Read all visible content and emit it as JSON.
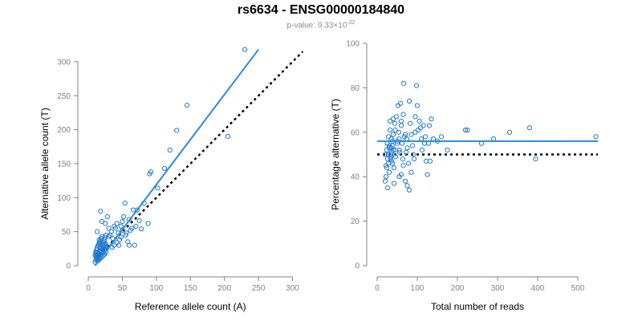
{
  "title": "rs6634 - ENSG00000184840",
  "subtitle": {
    "prefix": "p-value: 9.33×10",
    "exponent": "-32"
  },
  "colors": {
    "points": "#1f77d0",
    "fit_line": "#2a8ae0",
    "reference_line": "#000000",
    "axis": "#808080"
  },
  "chart_data": [
    {
      "type": "scatter",
      "xlabel": "Reference allele count (A)",
      "ylabel": "Alternative allele count (T)",
      "xlim": [
        0,
        310
      ],
      "ylim": [
        0,
        320
      ],
      "xticks": [
        0,
        50,
        100,
        150,
        200,
        250,
        300
      ],
      "yticks": [
        0,
        50,
        100,
        150,
        200,
        250,
        300
      ],
      "grid": false,
      "points": [
        [
          10,
          5
        ],
        [
          11,
          8
        ],
        [
          12,
          10
        ],
        [
          13,
          12
        ],
        [
          14,
          15
        ],
        [
          15,
          18
        ],
        [
          16,
          20
        ],
        [
          17,
          22
        ],
        [
          12,
          14
        ],
        [
          13,
          17
        ],
        [
          14,
          12
        ],
        [
          15,
          10
        ],
        [
          16,
          13
        ],
        [
          18,
          16
        ],
        [
          19,
          19
        ],
        [
          20,
          21
        ],
        [
          21,
          24
        ],
        [
          22,
          26
        ],
        [
          23,
          20
        ],
        [
          24,
          23
        ],
        [
          25,
          27
        ],
        [
          26,
          30
        ],
        [
          27,
          25
        ],
        [
          28,
          28
        ],
        [
          11,
          20
        ],
        [
          12,
          23
        ],
        [
          13,
          26
        ],
        [
          14,
          29
        ],
        [
          15,
          31
        ],
        [
          16,
          33
        ],
        [
          17,
          35
        ],
        [
          18,
          37
        ],
        [
          19,
          40
        ],
        [
          20,
          43
        ],
        [
          21,
          30
        ],
        [
          22,
          34
        ],
        [
          23,
          36
        ],
        [
          24,
          39
        ],
        [
          25,
          42
        ],
        [
          26,
          45
        ],
        [
          14,
          7
        ],
        [
          16,
          9
        ],
        [
          18,
          11
        ],
        [
          20,
          13
        ],
        [
          22,
          15
        ],
        [
          24,
          17
        ],
        [
          26,
          19
        ],
        [
          13,
          50
        ],
        [
          16,
          38
        ],
        [
          10,
          15
        ],
        [
          11,
          17
        ],
        [
          12,
          19
        ],
        [
          17,
          28
        ],
        [
          19,
          26
        ],
        [
          21,
          28
        ],
        [
          23,
          31
        ],
        [
          25,
          33
        ],
        [
          18,
          80
        ],
        [
          25,
          62
        ],
        [
          28,
          72
        ],
        [
          30,
          55
        ],
        [
          32,
          45
        ],
        [
          34,
          50
        ],
        [
          36,
          40
        ],
        [
          38,
          30
        ],
        [
          40,
          55
        ],
        [
          42,
          62
        ],
        [
          44,
          48
        ],
        [
          46,
          38
        ],
        [
          48,
          58
        ],
        [
          50,
          65
        ],
        [
          52,
          72
        ],
        [
          54,
          92
        ],
        [
          56,
          48
        ],
        [
          58,
          35
        ],
        [
          60,
          68
        ],
        [
          62,
          52
        ],
        [
          64,
          55
        ],
        [
          66,
          82
        ],
        [
          68,
          30
        ],
        [
          70,
          58
        ],
        [
          72,
          82
        ],
        [
          75,
          66
        ],
        [
          78,
          54
        ],
        [
          82,
          92
        ],
        [
          88,
          62
        ],
        [
          90,
          135
        ],
        [
          92,
          138
        ],
        [
          102,
          114
        ],
        [
          112,
          143
        ],
        [
          120,
          170
        ],
        [
          130,
          199
        ],
        [
          145,
          236
        ],
        [
          205,
          190
        ],
        [
          230,
          318
        ],
        [
          20,
          65
        ],
        [
          30,
          43
        ],
        [
          35,
          27
        ],
        [
          45,
          30
        ],
        [
          48,
          42
        ],
        [
          55,
          45
        ],
        [
          60,
          30
        ],
        [
          38,
          58
        ],
        [
          42,
          34
        ],
        [
          50,
          52
        ]
      ],
      "fit_line": [
        [
          10,
          0
        ],
        [
          250,
          318
        ]
      ],
      "reference_line": [
        [
          10,
          10
        ],
        [
          315,
          315
        ]
      ]
    },
    {
      "type": "scatter",
      "xlabel": "Total number of reads",
      "ylabel": "Percentage alternative (T)",
      "xlim": [
        0,
        550
      ],
      "ylim": [
        0,
        100
      ],
      "xticks": [
        0,
        100,
        200,
        300,
        400,
        500
      ],
      "yticks": [
        0,
        20,
        40,
        60,
        80,
        100
      ],
      "grid": false,
      "points": [
        [
          20,
          50
        ],
        [
          22,
          45
        ],
        [
          24,
          52
        ],
        [
          25,
          55
        ],
        [
          26,
          48
        ],
        [
          28,
          58
        ],
        [
          30,
          42
        ],
        [
          32,
          61
        ],
        [
          34,
          50
        ],
        [
          35,
          53
        ],
        [
          36,
          47
        ],
        [
          38,
          56
        ],
        [
          40,
          59
        ],
        [
          42,
          44
        ],
        [
          44,
          64
        ],
        [
          45,
          52
        ],
        [
          46,
          49
        ],
        [
          48,
          67
        ],
        [
          50,
          56
        ],
        [
          52,
          72
        ],
        [
          54,
          60
        ],
        [
          55,
          57
        ],
        [
          56,
          51
        ],
        [
          58,
          73
        ],
        [
          60,
          63
        ],
        [
          62,
          55
        ],
        [
          64,
          48
        ],
        [
          65,
          68
        ],
        [
          66,
          82
        ],
        [
          68,
          58
        ],
        [
          70,
          59
        ],
        [
          72,
          51
        ],
        [
          74,
          57
        ],
        [
          75,
          53
        ],
        [
          78,
          46
        ],
        [
          80,
          74
        ],
        [
          82,
          64
        ],
        [
          85,
          59
        ],
        [
          88,
          54
        ],
        [
          90,
          50
        ],
        [
          92,
          48
        ],
        [
          95,
          67
        ],
        [
          98,
          81
        ],
        [
          100,
          72
        ],
        [
          102,
          61
        ],
        [
          105,
          65
        ],
        [
          108,
          62
        ],
        [
          110,
          57
        ],
        [
          112,
          52
        ],
        [
          115,
          63
        ],
        [
          118,
          55
        ],
        [
          120,
          58
        ],
        [
          122,
          47
        ],
        [
          125,
          41
        ],
        [
          128,
          55
        ],
        [
          130,
          63
        ],
        [
          132,
          47
        ],
        [
          135,
          66
        ],
        [
          140,
          57
        ],
        [
          150,
          56
        ],
        [
          160,
          58
        ],
        [
          175,
          52
        ],
        [
          220,
          61
        ],
        [
          225,
          61
        ],
        [
          260,
          55
        ],
        [
          290,
          57
        ],
        [
          330,
          60
        ],
        [
          380,
          62
        ],
        [
          395,
          48
        ],
        [
          545,
          58
        ],
        [
          20,
          38
        ],
        [
          22,
          40
        ],
        [
          24,
          44
        ],
        [
          26,
          35
        ],
        [
          28,
          46
        ],
        [
          30,
          53
        ],
        [
          32,
          65
        ],
        [
          34,
          49
        ],
        [
          36,
          51
        ],
        [
          38,
          54
        ],
        [
          40,
          66
        ],
        [
          42,
          37
        ],
        [
          55,
          40
        ],
        [
          60,
          65
        ],
        [
          70,
          38
        ],
        [
          75,
          36
        ],
        [
          80,
          34
        ],
        [
          85,
          42
        ],
        [
          95,
          60
        ],
        [
          60,
          41
        ],
        [
          65,
          45
        ],
        [
          30,
          54
        ],
        [
          35,
          57
        ],
        [
          40,
          52
        ],
        [
          45,
          61
        ],
        [
          50,
          55
        ],
        [
          55,
          52
        ],
        [
          28,
          50
        ],
        [
          33,
          48
        ],
        [
          38,
          46
        ]
      ],
      "fit_line": [
        [
          0,
          56
        ],
        [
          550,
          56
        ]
      ],
      "reference_line": [
        [
          0,
          50
        ],
        [
          550,
          50
        ]
      ]
    }
  ]
}
